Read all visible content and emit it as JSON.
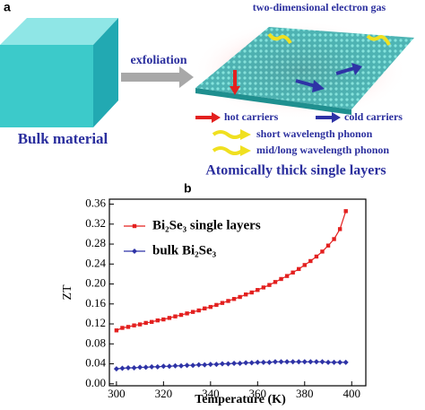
{
  "panel_a": {
    "label": "a",
    "top_annotation": "two-dimensional electron gas",
    "process_label": "exfoliation",
    "material_label": "Bulk material",
    "result_label": "Atomically thick single layers",
    "legend": [
      "hot carriers",
      "cold carriers",
      "short wavelength phonon",
      "mid/long wavelength phonon"
    ]
  },
  "panel_b": {
    "label": "b"
  },
  "chart_data": {
    "type": "line",
    "x_label": "Temperature (K)",
    "y_label": "ZT",
    "x": [
      300,
      302.5,
      305,
      307.5,
      310,
      312.5,
      315,
      317.5,
      320,
      322.5,
      325,
      327.5,
      330,
      332.5,
      335,
      337.5,
      340,
      342.5,
      345,
      347.5,
      350,
      352.5,
      355,
      357.5,
      360,
      362.5,
      365,
      367.5,
      370,
      372.5,
      375,
      377.5,
      380,
      382.5,
      385,
      387.5,
      390,
      392.5,
      395,
      397.5
    ],
    "series": [
      {
        "name": "Bi₂Se₃ single layers",
        "color": "#e3201f",
        "marker": "square",
        "values": [
          0.107,
          0.112,
          0.114,
          0.117,
          0.119,
          0.122,
          0.124,
          0.127,
          0.129,
          0.132,
          0.135,
          0.138,
          0.141,
          0.144,
          0.147,
          0.151,
          0.154,
          0.158,
          0.162,
          0.166,
          0.17,
          0.174,
          0.179,
          0.183,
          0.188,
          0.193,
          0.198,
          0.204,
          0.21,
          0.216,
          0.223,
          0.23,
          0.238,
          0.246,
          0.255,
          0.265,
          0.277,
          0.29,
          0.31,
          0.346
        ]
      },
      {
        "name": "bulk Bi₂Se₃",
        "color": "#2e33a6",
        "marker": "diamond",
        "values": [
          0.03,
          0.031,
          0.032,
          0.032,
          0.033,
          0.033,
          0.034,
          0.034,
          0.035,
          0.035,
          0.036,
          0.036,
          0.037,
          0.037,
          0.038,
          0.038,
          0.039,
          0.039,
          0.04,
          0.04,
          0.041,
          0.041,
          0.042,
          0.042,
          0.043,
          0.043,
          0.043,
          0.044,
          0.044,
          0.044,
          0.044,
          0.044,
          0.044,
          0.044,
          0.044,
          0.044,
          0.043,
          0.043,
          0.043,
          0.043
        ]
      }
    ],
    "xlim": [
      297,
      406
    ],
    "xticks": [
      300,
      320,
      340,
      360,
      380,
      400
    ],
    "ylim": [
      -0.004,
      0.37
    ],
    "yticks": [
      {
        "value": 0,
        "label": "0.00"
      },
      0.04,
      0.08,
      0.12,
      0.16,
      {
        "value": 0.2,
        "label": "0.20"
      },
      0.24,
      0.28,
      0.32,
      0.36
    ]
  }
}
